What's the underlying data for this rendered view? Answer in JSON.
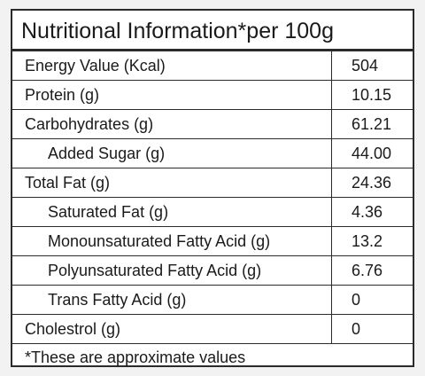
{
  "title": "Nutritional Information*per 100g",
  "rows": [
    {
      "name": "Energy Value (Kcal)",
      "value": "504",
      "indent": false
    },
    {
      "name": "Protein (g)",
      "value": "10.15",
      "indent": false
    },
    {
      "name": "Carbohydrates (g)",
      "value": "61.21",
      "indent": false
    },
    {
      "name": "Added Sugar (g)",
      "value": "44.00",
      "indent": true
    },
    {
      "name": "Total Fat (g)",
      "value": "24.36",
      "indent": false
    },
    {
      "name": "Saturated Fat (g)",
      "value": "4.36",
      "indent": true
    },
    {
      "name": "Monounsaturated Fatty Acid (g)",
      "value": "13.2",
      "indent": true
    },
    {
      "name": "Polyunsaturated Fatty Acid (g)",
      "value": "6.76",
      "indent": true
    },
    {
      "name": "Trans Fatty Acid (g)",
      "value": "0",
      "indent": true
    },
    {
      "name": "Cholestrol (g)",
      "value": "0",
      "indent": false
    }
  ],
  "footnote": "*These are approximate values"
}
